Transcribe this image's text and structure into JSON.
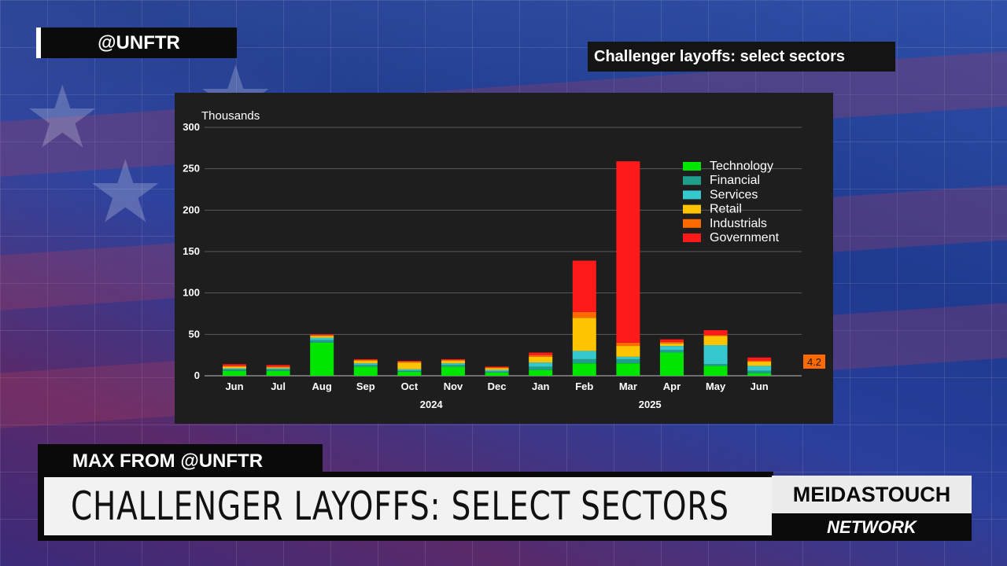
{
  "overlay": {
    "handle": "@UNFTR",
    "chart_title": "Challenger layoffs: select sectors",
    "speaker": "MAX FROM @UNFTR",
    "headline": "CHALLENGER LAYOFFS: SELECT SECTORS",
    "brand_top": "MEIDASTOUCH",
    "brand_bottom": "NETWORK"
  },
  "colors": {
    "Technology": "#00e600",
    "Financial": "#1f9e8c",
    "Services": "#35c8cc",
    "Retail": "#ffc400",
    "Industrials": "#ff6a00",
    "Government": "#ff1a1a",
    "callout_bg": "#ff6a00"
  },
  "chart_data": {
    "type": "bar",
    "stacked": true,
    "ylabel": "Thousands",
    "ylim": [
      0,
      300
    ],
    "yticks": [
      "0",
      "50",
      "100",
      "150",
      "200",
      "250",
      "300"
    ],
    "grid": true,
    "legend_position": "top-right",
    "categories": [
      "Jun",
      "Jul",
      "Aug",
      "Sep",
      "Oct",
      "Nov",
      "Dec",
      "Jan",
      "Feb",
      "Mar",
      "Apr",
      "May",
      "Jun"
    ],
    "year_labels": [
      {
        "label": "2024",
        "category_index": 4.5
      },
      {
        "label": "2025",
        "category_index": 9.5
      }
    ],
    "series": [
      {
        "name": "Technology",
        "values": [
          6,
          6,
          40,
          11,
          5,
          11,
          4,
          7,
          15,
          15,
          28,
          12,
          3
        ]
      },
      {
        "name": "Financial",
        "values": [
          2,
          2,
          3,
          2,
          1,
          2,
          1,
          4,
          5,
          5,
          3,
          2,
          3
        ]
      },
      {
        "name": "Services",
        "values": [
          1,
          1,
          3,
          2,
          2,
          2,
          2,
          5,
          10,
          3,
          5,
          23,
          6
        ]
      },
      {
        "name": "Retail",
        "values": [
          2,
          1,
          2,
          3,
          8,
          3,
          2,
          7,
          40,
          13,
          3,
          11,
          5
        ]
      },
      {
        "name": "Industrials",
        "values": [
          1,
          1,
          1,
          1,
          1,
          1,
          1,
          2,
          7,
          4,
          2,
          1,
          1
        ]
      },
      {
        "name": "Government",
        "values": [
          2,
          2,
          1,
          1,
          1,
          1,
          1,
          3,
          62,
          219,
          3,
          6,
          4
        ]
      }
    ],
    "callout": "4.2"
  }
}
